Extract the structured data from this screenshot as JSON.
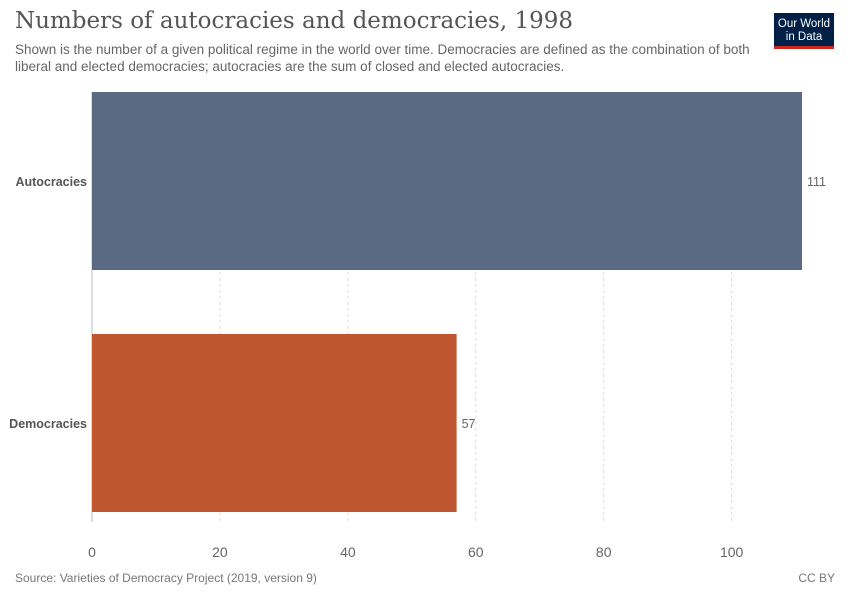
{
  "header": {
    "title": "Numbers of autocracies and democracies, 1998",
    "subtitle": "Shown is the number of a given political regime in the world over time. Democracies are defined as the combination of both liberal and elected democracies; autocracies are the sum of closed and elected autocracies."
  },
  "logo": {
    "line1": "Our World",
    "line2": "in Data",
    "bg_color": "#002147",
    "accent_color": "#ce261e"
  },
  "footer": {
    "source": "Source: Varieties of Democracy Project (2019, version 9)",
    "license": "CC BY"
  },
  "chart_data": {
    "type": "bar",
    "orientation": "horizontal",
    "categories": [
      "Autocracies",
      "Democracies"
    ],
    "values": [
      111,
      57
    ],
    "colors": [
      "#5a6a82",
      "#be562f"
    ],
    "xlim": [
      0,
      111
    ],
    "xticks": [
      0,
      20,
      40,
      60,
      80,
      100
    ],
    "grid": true,
    "legend": "none"
  }
}
